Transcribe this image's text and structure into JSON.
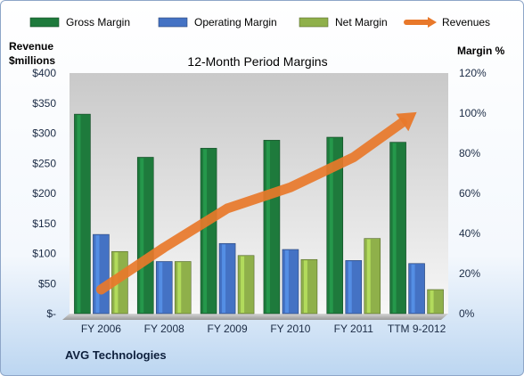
{
  "chart_data": {
    "type": "bar",
    "title": "12-Month Period Margins",
    "company": "AVG Technologies",
    "categories": [
      "FY 2006",
      "FY 2008",
      "FY 2009",
      "FY 2010",
      "FY 2011",
      "TTM 9-2012"
    ],
    "series": [
      {
        "name": "Gross Margin",
        "axis": "right",
        "color": "#1e7a3c",
        "values": [
          99.5,
          78,
          82.5,
          86.5,
          88,
          85.5
        ]
      },
      {
        "name": "Operating Margin",
        "axis": "right",
        "color": "#4472c4",
        "values": [
          39.5,
          26,
          35,
          32,
          26.5,
          25
        ]
      },
      {
        "name": "Net Margin",
        "axis": "right",
        "color": "#8fb04a",
        "values": [
          31,
          26,
          29,
          27,
          37.5,
          12
        ]
      },
      {
        "name": "Revenues",
        "axis": "left",
        "type": "line-arrow",
        "color": "#e8782a",
        "values": [
          40,
          110,
          175,
          210,
          260,
          335
        ]
      }
    ],
    "left_axis": {
      "label_line1": "Revenue",
      "label_line2": "$millions",
      "ylim": [
        0,
        400
      ],
      "ticks": [
        "$-",
        "$50",
        "$100",
        "$150",
        "$200",
        "$250",
        "$300",
        "$350",
        "$400"
      ]
    },
    "right_axis": {
      "label": "Margin %",
      "ylim": [
        0,
        120
      ],
      "ticks": [
        "0%",
        "20%",
        "40%",
        "60%",
        "80%",
        "100%",
        "120%"
      ]
    },
    "grid": false,
    "legend_position": "top"
  }
}
